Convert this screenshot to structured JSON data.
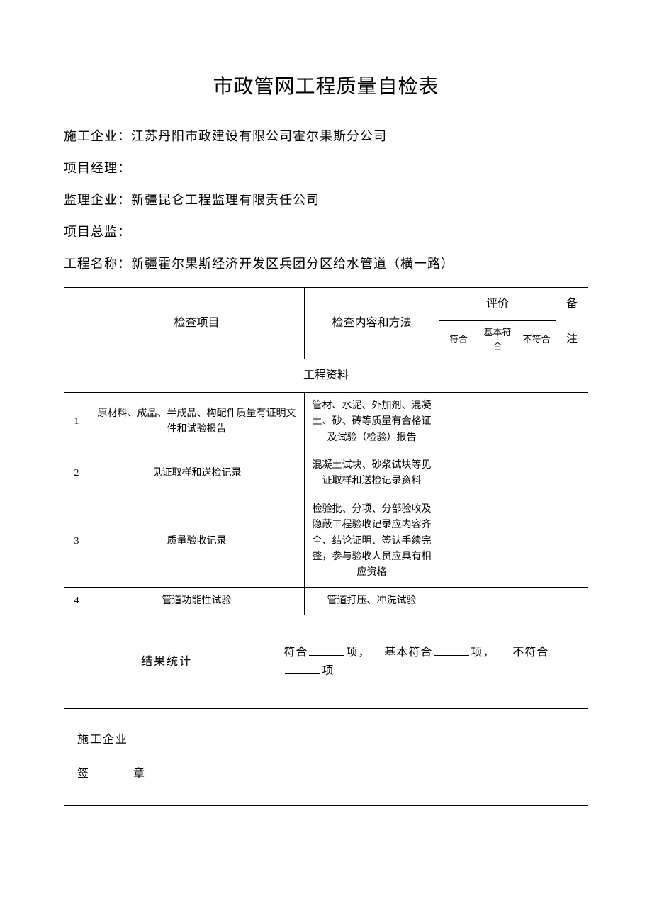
{
  "title": "市政管网工程质量自检表",
  "info": {
    "company_label": "施工企业：",
    "company_value": "江苏丹阳市政建设有限公司霍尔果斯分公司",
    "pm_label": "项目经理：",
    "pm_value": "",
    "supervisor_label": "监理企业：",
    "supervisor_value": "新疆昆仑工程监理有限责任公司",
    "director_label": "项目总监：",
    "director_value": "",
    "project_label": "工程名称：",
    "project_value": "新疆霍尔果斯经济开发区兵团分区给水管道（横一路）"
  },
  "headers": {
    "check_item": "检查项目",
    "check_content": "检查内容和方法",
    "eval": "评价",
    "remark_top": "备",
    "remark_bottom": "注",
    "pass": "符合",
    "basic_pass": "基本符合",
    "fail": "不符合"
  },
  "section_title": "工程资料",
  "rows": [
    {
      "idx": "1",
      "item": "原材料、成品、半成品、构配件质量有证明文件和试验报告",
      "content": "管材、水泥、外加剂、混凝土、砂、砖等质量有合格证及试验（检验）报告"
    },
    {
      "idx": "2",
      "item": "见证取样和送检记录",
      "content": "混凝土试块、砂浆试块等见证取样和送检记录资料"
    },
    {
      "idx": "3",
      "item": "质量验收记录",
      "content": "检验批、分项、分部验收及隐蔽工程验收记录应内容齐全、结论证明、签认手续完整，参与验收人员应具有相应资格"
    },
    {
      "idx": "4",
      "item": "管道功能性试验",
      "content": "管道打压、冲洗试验"
    }
  ],
  "summary": {
    "label": "结果统计",
    "t1": "符合",
    "t2": "项，",
    "t3": "基本符合",
    "t4": "项，",
    "t5": "不符合",
    "t6": "项"
  },
  "sign": {
    "line1": "施工企业",
    "line2": "签　　章"
  },
  "style": {
    "title_fontsize": 28,
    "body_fontsize": 18,
    "table_fontsize": 14,
    "header_fontsize": 16,
    "border_color": "#000000",
    "background": "#ffffff",
    "text_color": "#000000"
  }
}
